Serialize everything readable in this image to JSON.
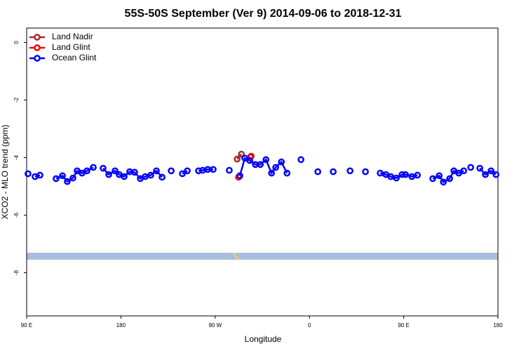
{
  "chart_data": {
    "type": "line",
    "title": "55S-50S September (Ver 9)   2014-09-06 to 2018-12-31",
    "x_label": "Longitude",
    "y_label": "XCO2 - MLO trend (ppm)",
    "xlim": [
      90,
      540
    ],
    "ylim": [
      -9.5,
      0.5
    ],
    "xticks": [
      {
        "value": 90,
        "label": "90 E"
      },
      180,
      {
        "value": 270,
        "label": "90 W"
      },
      {
        "value": 360,
        "label": "0"
      },
      {
        "value": 450,
        "label": "90 E"
      },
      {
        "value": 540,
        "label": "180"
      }
    ],
    "yticks": [
      0,
      -2,
      -4,
      -6,
      -8
    ],
    "legend": "top-left",
    "series": [
      {
        "name": "Land Nadir",
        "color": "#a52a2a",
        "x": [
          291.0,
          295.0,
          304.4
        ],
        "values": [
          -4.05,
          -3.88,
          -3.95
        ]
      },
      {
        "name": "Land Glint",
        "color": "#ff0000",
        "x": [
          292.3,
          303.6
        ],
        "values": [
          -4.68,
          -3.98
        ]
      },
      {
        "name": "Ocean Glint",
        "color": "#0000ff",
        "x": [
          91.3,
          98.0,
          102.7,
          118.1,
          124.2,
          128.8,
          134.2,
          138.2,
          142.9,
          147.6,
          153.6,
          163.0,
          168.4,
          174.4,
          178.4,
          183.1,
          188.4,
          193.1,
          198.5,
          203.2,
          208.5,
          213.9,
          219.3,
          228.0,
          238.7,
          243.4,
          254.1,
          258.1,
          262.9,
          268.1,
          283.5,
          293.6,
          298.3,
          303.0,
          308.4,
          313.1,
          318.5,
          323.8,
          327.8,
          333.2,
          338.6,
          351.9,
          368.0,
          382.7,
          398.8,
          413.5,
          427.6,
          433.0,
          437.7,
          443.0,
          448.4,
          451.7,
          457.8,
          463.1,
          477.8,
          483.9,
          487.9,
          493.9,
          497.9,
          502.6,
          507.3,
          514.0,
          522.7,
          528.0,
          533.4,
          538.1
        ],
        "values": [
          -4.56,
          -4.66,
          -4.61,
          -4.73,
          -4.63,
          -4.83,
          -4.71,
          -4.46,
          -4.54,
          -4.46,
          -4.34,
          -4.37,
          -4.59,
          -4.46,
          -4.59,
          -4.66,
          -4.49,
          -4.51,
          -4.73,
          -4.66,
          -4.61,
          -4.46,
          -4.68,
          -4.46,
          -4.56,
          -4.46,
          -4.46,
          -4.44,
          -4.41,
          -4.41,
          -4.44,
          -4.63,
          -4.02,
          -4.1,
          -4.24,
          -4.24,
          -4.07,
          -4.54,
          -4.34,
          -4.15,
          -4.54,
          -4.07,
          -4.49,
          -4.49,
          -4.46,
          -4.49,
          -4.54,
          -4.59,
          -4.66,
          -4.71,
          -4.59,
          -4.59,
          -4.66,
          -4.61,
          -4.73,
          -4.63,
          -4.85,
          -4.73,
          -4.46,
          -4.54,
          -4.46,
          -4.34,
          -4.37,
          -4.59,
          -4.46,
          -4.59
        ]
      }
    ]
  }
}
